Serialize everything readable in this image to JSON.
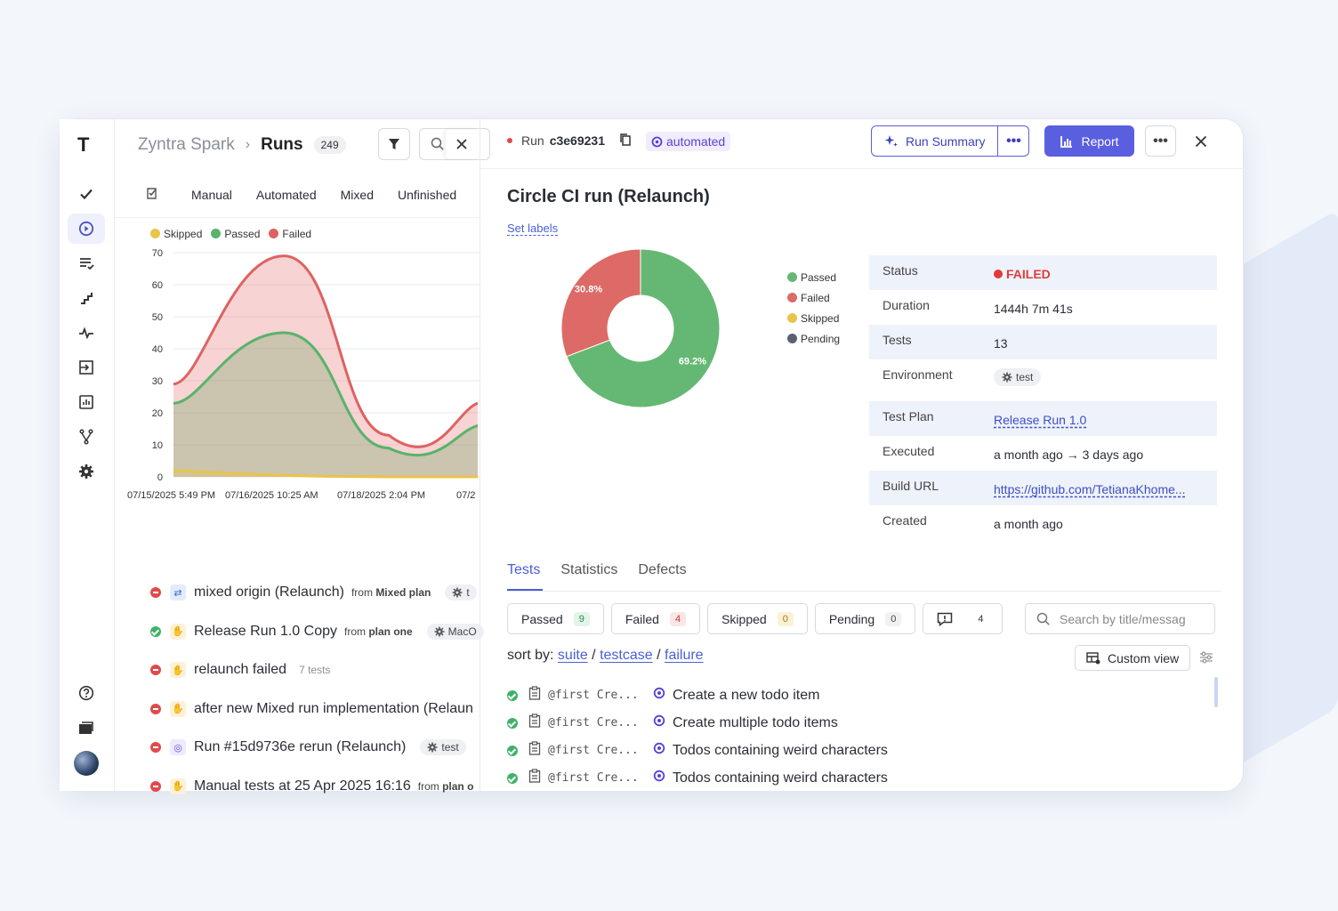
{
  "app": {
    "logo": "T",
    "project": "Zyntra Spark",
    "page": "Runs",
    "run_count": "249"
  },
  "left_tabs": [
    "Manual",
    "Automated",
    "Mixed",
    "Unfinished"
  ],
  "legend": [
    {
      "label": "Skipped",
      "color": "#e8c44a"
    },
    {
      "label": "Passed",
      "color": "#59b36b"
    },
    {
      "label": "Failed",
      "color": "#de6262"
    }
  ],
  "chart_data": {
    "type": "area",
    "x": [
      "07/15/2025 5:49 PM",
      "07/16/2025 10:25 AM",
      "07/18/2025 2:04 PM",
      "07/2"
    ],
    "ylim": [
      0,
      70
    ],
    "yticks": [
      "70",
      "60",
      "50",
      "40",
      "30",
      "20",
      "10",
      "0"
    ],
    "series": [
      {
        "name": "Skipped",
        "values": [
          2,
          0.5,
          0,
          0
        ]
      },
      {
        "name": "Passed",
        "values": [
          23,
          45,
          9,
          16
        ]
      },
      {
        "name": "Failed",
        "values": [
          29,
          69,
          13,
          23
        ]
      }
    ]
  },
  "runs": [
    {
      "status": "failed",
      "type": "mixed",
      "name": "mixed origin (Relaunch)",
      "from_label": "from",
      "from": "Mixed plan",
      "chip": "t"
    },
    {
      "status": "passed",
      "type": "manual",
      "name": "Release Run 1.0 Copy",
      "from_label": "from",
      "from": "plan one",
      "chip": "MacO"
    },
    {
      "status": "failed",
      "type": "manual",
      "name": "relaunch failed",
      "tests": "7 tests"
    },
    {
      "status": "failed",
      "type": "manual",
      "name": "after new Mixed run implementation (Relaun"
    },
    {
      "status": "failed",
      "type": "auto",
      "name": "Run #15d9736e rerun (Relaunch)",
      "chip": "test"
    },
    {
      "status": "failed",
      "type": "manual",
      "name": "Manual tests at 25 Apr 2025 16:16",
      "from_label": "from",
      "from": "plan o"
    }
  ],
  "detail": {
    "run_prefix": "Run",
    "run_id": "c3e69231",
    "tag": "automated",
    "run_summary": "Run Summary",
    "more": "•••",
    "report": "Report",
    "title": "Circle CI run (Relaunch)",
    "set_labels": "Set labels",
    "donut": {
      "type": "pie",
      "slices": [
        {
          "name": "Passed",
          "value": 69.2,
          "label": "69.2%",
          "color": "#65b874"
        },
        {
          "name": "Failed",
          "value": 30.8,
          "label": "30.8%",
          "color": "#dd6a66"
        },
        {
          "name": "Skipped",
          "value": 0,
          "color": "#e8c44a"
        },
        {
          "name": "Pending",
          "value": 0,
          "color": "#5b6070"
        }
      ]
    },
    "info": {
      "status_k": "Status",
      "status_v": "FAILED",
      "duration_k": "Duration",
      "duration_v": "1444h 7m 41s",
      "tests_k": "Tests",
      "tests_v": "13",
      "env_k": "Environment",
      "env_v": "test",
      "plan_k": "Test Plan",
      "plan_v": "Release Run 1.0",
      "exec_k": "Executed",
      "exec_v": "a month ago → 3 days ago",
      "build_k": "Build URL",
      "build_v": "https://github.com/TetianaKhome...",
      "created_k": "Created",
      "created_v": "a month ago"
    },
    "tabs": [
      "Tests",
      "Statistics",
      "Defects"
    ],
    "filters": [
      {
        "label": "Passed",
        "count": "9",
        "kind": "g"
      },
      {
        "label": "Failed",
        "count": "4",
        "kind": "r"
      },
      {
        "label": "Skipped",
        "count": "0",
        "kind": "y"
      },
      {
        "label": "Pending",
        "count": "0",
        "kind": "n"
      }
    ],
    "comments_count": "4",
    "search_placeholder": "Search by title/messag",
    "sort_label": "sort by:",
    "sort_suite": "suite",
    "sort_testcase": "testcase",
    "sort_failure": "failure",
    "custom_view": "Custom view",
    "tests": [
      {
        "suite": "@first Cre...",
        "name": "Create a new todo item"
      },
      {
        "suite": "@first Cre...",
        "name": "Create multiple todo items"
      },
      {
        "suite": "@first Cre...",
        "name": "Todos containing weird characters"
      },
      {
        "suite": "@first Cre...",
        "name": "Todos containing weird characters"
      }
    ]
  }
}
